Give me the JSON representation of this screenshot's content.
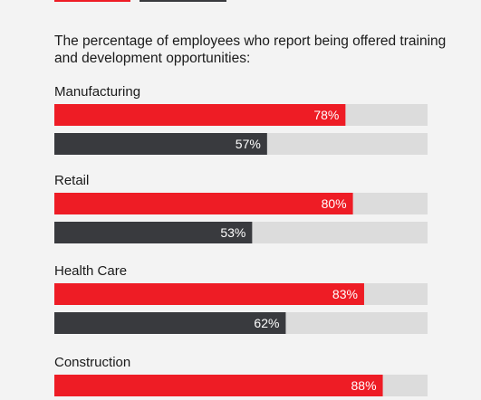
{
  "chart_data": {
    "type": "bar",
    "orientation": "horizontal",
    "title": "The percentage of employees who report being offered training and development opportunities:",
    "categories": [
      "Manufacturing",
      "Retail",
      "Health Care",
      "Construction"
    ],
    "series": [
      {
        "color": "#ee1c25",
        "values": [
          78,
          80,
          83,
          88
        ]
      },
      {
        "color": "#393a3e",
        "values": [
          57,
          53,
          62,
          null
        ]
      }
    ],
    "value_suffix": "%",
    "xlim": [
      0,
      100
    ],
    "track_color": "#dcdcdc",
    "grid": false,
    "legend": "top-left"
  }
}
